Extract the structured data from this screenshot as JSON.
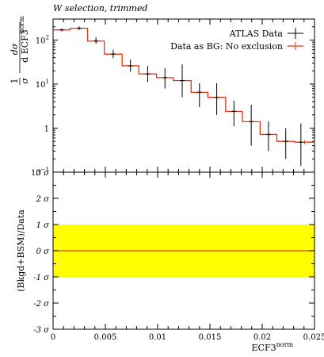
{
  "title": "W selection, trimmed",
  "chart_data": [
    {
      "type": "line",
      "panel": "main",
      "title": "W selection, trimmed",
      "xlabel": "ECF3^norm",
      "ylabel": "1/σ dσ/d ECF3^norm",
      "xlim": [
        0,
        0.025
      ],
      "ylim": [
        0.1,
        300
      ],
      "yscale": "log",
      "yticks": [
        {
          "v": 0.1,
          "label": "10",
          "sup": "−1"
        },
        {
          "v": 1,
          "label": "1",
          "sup": ""
        },
        {
          "v": 10,
          "label": "10",
          "sup": "1"
        },
        {
          "v": 100,
          "label": "10",
          "sup": "2"
        }
      ],
      "legend_position": "top-right",
      "bin_edges": [
        0,
        0.00165,
        0.0033,
        0.0049,
        0.0066,
        0.0082,
        0.0099,
        0.0115,
        0.0132,
        0.0148,
        0.0165,
        0.0181,
        0.0198,
        0.0214,
        0.0231,
        0.025
      ],
      "series": [
        {
          "name": "ATLAS Data",
          "color": "#000000",
          "style": "points-with-errors",
          "x": [
            0.00083,
            0.0025,
            0.0041,
            0.00575,
            0.0074,
            0.00905,
            0.0107,
            0.01235,
            0.014,
            0.01565,
            0.0173,
            0.01895,
            0.0206,
            0.02225,
            0.0237
          ],
          "y": [
            170,
            185,
            95,
            48,
            26,
            17,
            14,
            12,
            6.5,
            5,
            2.4,
            1.4,
            0.72,
            0.5,
            0.48
          ],
          "err_low": [
            8,
            10,
            12,
            9,
            7,
            6,
            6,
            7,
            3.5,
            3,
            1.3,
            1.0,
            0.42,
            0.3,
            0.34
          ],
          "err_high": [
            10,
            15,
            20,
            12,
            10,
            9,
            9,
            16,
            4,
            5.5,
            1.8,
            2.0,
            0.7,
            0.5,
            0.8
          ]
        },
        {
          "name": "Data as BG: No exclusion",
          "color": "#ee3311",
          "style": "histogram",
          "values": [
            170,
            185,
            95,
            48,
            26,
            17,
            14,
            12,
            6.5,
            5,
            2.4,
            1.4,
            0.72,
            0.5,
            0.48
          ]
        }
      ]
    },
    {
      "type": "line",
      "panel": "ratio",
      "xlabel": "ECF3^norm",
      "ylabel": "(Bkgd+BSM)/Data",
      "xlim": [
        0,
        0.025
      ],
      "ylim": [
        -3,
        3
      ],
      "xticks": [
        {
          "v": 0,
          "label": "0"
        },
        {
          "v": 0.005,
          "label": "0.005"
        },
        {
          "v": 0.01,
          "label": "0.01"
        },
        {
          "v": 0.015,
          "label": "0.015"
        },
        {
          "v": 0.02,
          "label": "0.02"
        },
        {
          "v": 0.025,
          "label": "0.025"
        }
      ],
      "yticks": [
        {
          "v": 3,
          "label": "3 σ"
        },
        {
          "v": 2,
          "label": "2 σ"
        },
        {
          "v": 1,
          "label": "1 σ"
        },
        {
          "v": 0,
          "label": "0 σ"
        },
        {
          "v": -1,
          "label": "-1 σ"
        },
        {
          "v": -2,
          "label": "-2 σ"
        },
        {
          "v": -3,
          "label": "-3 σ"
        }
      ],
      "band": {
        "low": -1,
        "high": 1,
        "color": "#ffff00"
      },
      "series": [
        {
          "name": "ratio",
          "color": "#ee3311",
          "x": [
            0,
            0.025
          ],
          "y": [
            0,
            0
          ]
        }
      ]
    }
  ],
  "legend": {
    "entries": [
      {
        "label": "ATLAS Data",
        "color": "#000000"
      },
      {
        "label": "Data as BG: No exclusion",
        "color": "#ee3311"
      }
    ]
  },
  "ratio_ylabel": "(Bkgd+BSM)/Data",
  "xlabel_main": "ECF3",
  "xlabel_sup": "norm"
}
